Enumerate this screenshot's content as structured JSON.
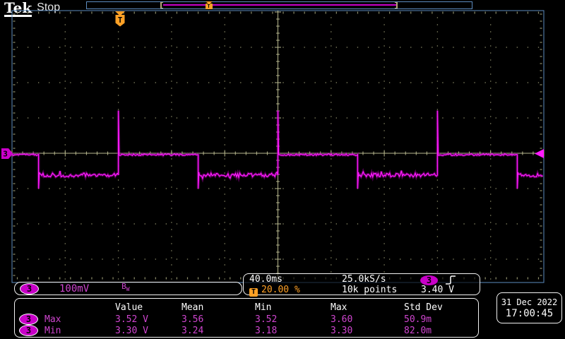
{
  "header": {
    "brand": "Tek",
    "status": "Stop"
  },
  "icons": {
    "trigger_letter": "T",
    "slope": "rising-edge",
    "channel_marker": "arrow-right-flag",
    "trigger_level_marker": "arrow-left"
  },
  "channel_readout": {
    "channel": "3",
    "scale": "100mV",
    "bandwidth_b": "B",
    "bandwidth_sub": "W"
  },
  "horizontal_readout": {
    "time_per_div": "40.0ms",
    "trigger_position": "20.00 %"
  },
  "acquisition_readout": {
    "sample_rate": "25.0kS/s",
    "record": "10k points"
  },
  "trigger_readout": {
    "source": "3",
    "level": "3.40 V"
  },
  "datetime": {
    "date": "31 Dec 2022",
    "time": "17:00:45"
  },
  "measurements": {
    "columns": [
      "Value",
      "Mean",
      "Min",
      "Max",
      "Std Dev"
    ],
    "rows": [
      {
        "channel": "3",
        "label": "Max",
        "value": "3.52 V",
        "mean": "3.56",
        "min": "3.52",
        "max": "3.60",
        "std_dev": "50.9m"
      },
      {
        "channel": "3",
        "label": "Min",
        "value": "3.30 V",
        "mean": "3.24",
        "min": "3.18",
        "max": "3.30",
        "std_dev": "82.0m"
      }
    ]
  },
  "colors": {
    "magenta": "#cc00cc",
    "magenta_bright": "#ff1aff",
    "magenta_halo": "#8a008a",
    "magenta_text": "#cf45cf",
    "orange": "#ffa126",
    "blue": "#5d8cc0",
    "graticule": "#8f8f6b",
    "axis": "#b9b98f",
    "white": "#ffffff"
  },
  "chart_data": {
    "type": "line",
    "title": "Channel 3 trace: square wave with rising-edge overshoot spikes and falling-edge undershoot",
    "xlabel": "time (ms, trigger at 0)",
    "ylabel": "volts",
    "time_per_div_ms": 40,
    "volts_per_div": 0.1,
    "divisions": {
      "horizontal": 10,
      "vertical": 8
    },
    "window_ms": [
      -80,
      320
    ],
    "trigger_position_pct": 20,
    "trigger_level_v": 3.4,
    "period_ms": 120,
    "duty_cycle_pct": 50,
    "initial_state": "high",
    "levels_v": {
      "high": 3.4,
      "low": 3.34,
      "rise_overshoot_peak": 3.53,
      "fall_undershoot_min": 3.3
    },
    "edges": {
      "rise_ms": [
        0,
        120,
        240
      ],
      "fall_ms": [
        -60,
        60,
        180,
        300
      ]
    },
    "noise_vpp": {
      "high": 0.005,
      "low": 0.012
    }
  }
}
